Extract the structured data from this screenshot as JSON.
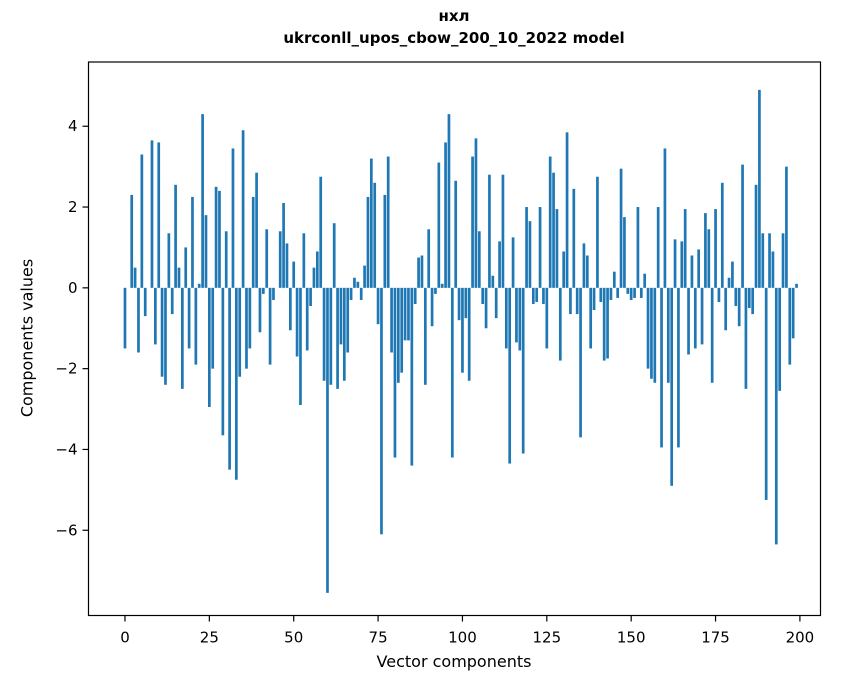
{
  "chart_data": {
    "type": "bar",
    "title": "нхл",
    "subtitle": "ukrconll_upos_cbow_200_10_2022 model",
    "xlabel": "Vector components",
    "ylabel": "Components values",
    "bar_color": "#1f77b4",
    "grid": false,
    "legend": "none",
    "x_start": 0,
    "bar_width": 0.8,
    "xlim": [
      -10.81,
      206.1
    ],
    "ylim": [
      -8.11,
      5.59
    ],
    "xticks": [
      0,
      25,
      50,
      75,
      100,
      125,
      150,
      175,
      200
    ],
    "xtick_labels": [
      "0",
      "25",
      "50",
      "75",
      "100",
      "125",
      "150",
      "175",
      "200"
    ],
    "yticks": [
      4,
      2,
      0,
      -2,
      -4,
      -6
    ],
    "ytick_labels": [
      "4",
      "2",
      "0",
      "−2",
      "−4",
      "−6"
    ],
    "values": [
      -1.5,
      0,
      2.3,
      0.5,
      -1.6,
      3.3,
      -0.7,
      0,
      3.65,
      -1.4,
      3.6,
      -2.2,
      -2.4,
      1.35,
      -0.65,
      2.55,
      0.5,
      -2.5,
      1.0,
      -1.5,
      2.25,
      -1.9,
      0.1,
      4.3,
      1.8,
      -2.95,
      -2.0,
      2.5,
      2.4,
      -3.65,
      1.4,
      -4.5,
      3.45,
      -4.75,
      -2.2,
      3.9,
      -2.0,
      -1.5,
      2.25,
      2.85,
      -1.1,
      -0.15,
      1.45,
      -1.9,
      -0.3,
      0,
      1.4,
      2.1,
      1.1,
      -1.05,
      0.65,
      -1.7,
      -2.9,
      1.35,
      -1.55,
      -0.45,
      0.5,
      0.9,
      2.75,
      -2.3,
      -7.55,
      -2.4,
      1.6,
      -2.5,
      -1.4,
      -2.3,
      -1.6,
      -0.3,
      0.25,
      0.15,
      -0.3,
      0.55,
      2.25,
      3.2,
      2.6,
      -0.9,
      -6.1,
      2.3,
      3.25,
      -1.6,
      -4.2,
      -2.35,
      -2.1,
      -1.3,
      -1.3,
      -4.4,
      -0.4,
      0.75,
      0.8,
      -2.4,
      1.45,
      -0.95,
      -0.15,
      3.1,
      0.1,
      3.6,
      4.3,
      -4.2,
      2.65,
      -0.8,
      -2.1,
      -0.75,
      -2.3,
      3.25,
      3.7,
      1.4,
      -0.4,
      -1.0,
      2.8,
      0.3,
      -0.75,
      1.15,
      2.8,
      -1.5,
      -4.35,
      1.25,
      -1.35,
      -1.55,
      -4.1,
      2.0,
      1.65,
      -0.4,
      -0.35,
      2.0,
      -0.4,
      -1.5,
      3.25,
      2.85,
      1.95,
      -1.8,
      0.9,
      3.85,
      -0.65,
      2.45,
      -0.65,
      -3.7,
      1.1,
      0.8,
      -1.5,
      -0.55,
      2.75,
      -0.35,
      -1.8,
      -1.75,
      -0.3,
      0.4,
      -0.25,
      2.95,
      1.75,
      -0.15,
      -0.3,
      -0.25,
      2.0,
      -0.25,
      0.35,
      -2.0,
      -2.25,
      -2.35,
      2.0,
      -3.95,
      3.45,
      -2.35,
      -4.9,
      1.2,
      -3.95,
      1.15,
      1.95,
      -1.65,
      0.8,
      -1.5,
      0.95,
      -1.4,
      1.85,
      1.45,
      -2.35,
      1.95,
      -0.35,
      2.6,
      -1.05,
      0.25,
      0.65,
      -0.45,
      -0.95,
      3.05,
      -2.5,
      -0.5,
      -0.65,
      2.55,
      4.9,
      1.35,
      -5.25,
      1.35,
      0.9,
      -6.35,
      -2.55,
      1.35,
      3.0,
      -1.9,
      -1.25,
      0.1
    ]
  }
}
